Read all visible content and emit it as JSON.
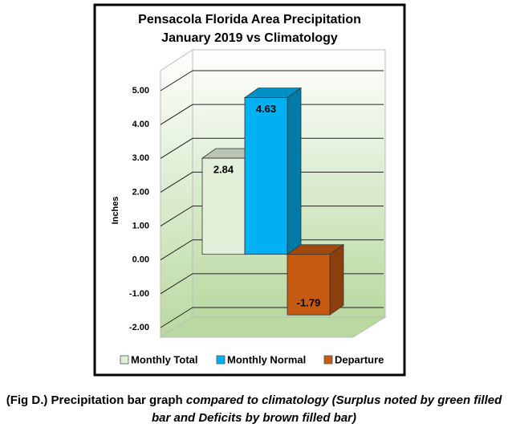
{
  "chart_data": {
    "type": "bar3d",
    "title": "Pensacola Florida Area Precipitation",
    "subtitle": "January 2019 vs Climatology",
    "y_label": "Inches",
    "categories": [
      null
    ],
    "series": [
      {
        "name": "Monthly Total",
        "color": "#e2efd9",
        "values": [
          2.84
        ]
      },
      {
        "name": "Monthly Normal",
        "color": "#00b0f0",
        "values": [
          4.63
        ]
      },
      {
        "name": "Departure",
        "color": "#c55a11",
        "values": [
          -1.79
        ]
      }
    ],
    "ylim": [
      -2,
      5
    ],
    "yticks": [
      {
        "value": -2,
        "label": "-2.00"
      },
      {
        "value": -1,
        "label": "-1.00"
      },
      {
        "value": 0,
        "label": "0.00"
      },
      {
        "value": 1,
        "label": "1.00"
      },
      {
        "value": 2,
        "label": "2.00"
      },
      {
        "value": 3,
        "label": "3.00"
      },
      {
        "value": 4,
        "label": "4.00"
      },
      {
        "value": 5,
        "label": "5.00"
      }
    ],
    "grid": true,
    "legend": "bottom"
  },
  "caption": {
    "bold": "(Fig D.) Precipitation bar graph ",
    "italic": "compared to climatology (Surplus noted by green filled bar and Deficits by brown filled bar)"
  }
}
